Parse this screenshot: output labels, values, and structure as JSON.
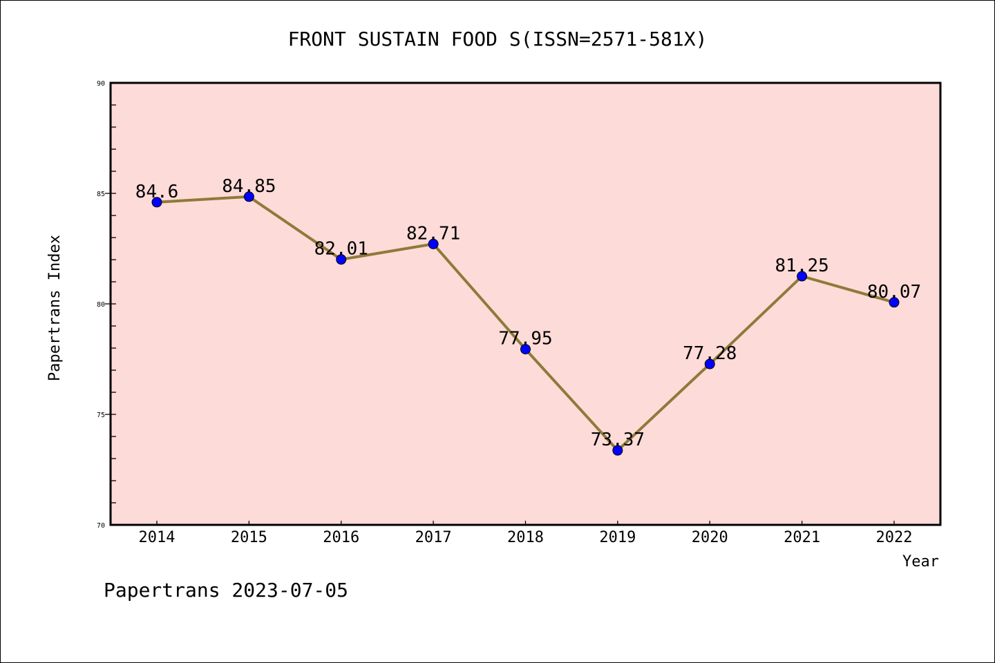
{
  "chart_data": {
    "type": "line",
    "title": "FRONT SUSTAIN FOOD S(ISSN=2571-581X)",
    "xlabel": "Year",
    "ylabel": "Papertrans Index",
    "x": [
      "2014",
      "2015",
      "2016",
      "2017",
      "2018",
      "2019",
      "2020",
      "2021",
      "2022"
    ],
    "series": [
      {
        "name": "Papertrans Index",
        "values": [
          84.6,
          84.85,
          82.01,
          82.71,
          77.95,
          73.37,
          77.28,
          81.25,
          80.07
        ]
      }
    ],
    "data_labels": [
      "84.6",
      "84.85",
      "82.01",
      "82.71",
      "77.95",
      "73.37",
      "77.28",
      "81.25",
      "80.07"
    ],
    "ylim": [
      70,
      90
    ],
    "yticks": [
      "70",
      "75",
      "80",
      "85",
      "90"
    ],
    "grid": false,
    "footer": "Papertrans 2023-07-05",
    "colors": {
      "background": "#fddbd8",
      "line": "#8e7a3a",
      "marker": "#0000ff"
    }
  }
}
